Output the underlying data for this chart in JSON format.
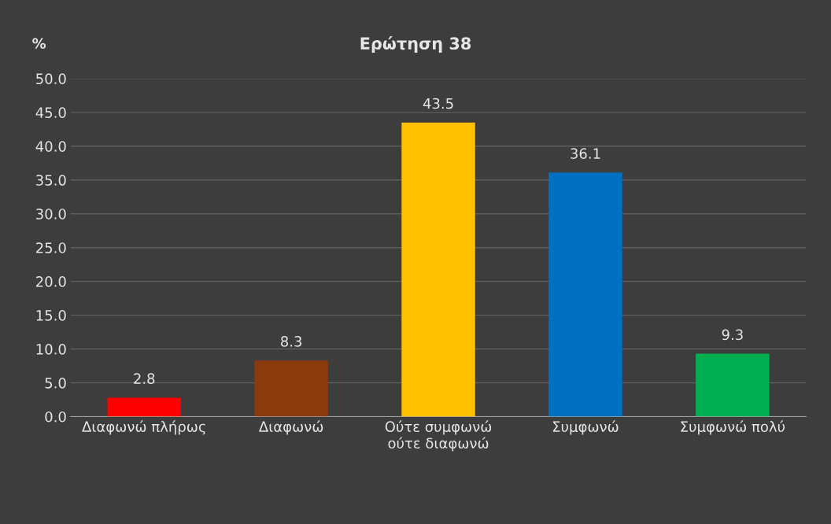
{
  "chart_data": {
    "type": "bar",
    "title": "Ερώτηση 38",
    "ylabel": "%",
    "categories": [
      "Διαφωνώ πλήρως",
      "Διαφωνώ",
      "Ούτε συμφωνώ\nούτε διαφωνώ",
      "Συμφωνώ",
      "Συμφωνώ πολύ"
    ],
    "values": [
      2.8,
      8.3,
      43.5,
      36.1,
      9.3
    ],
    "colors": [
      "#ff0000",
      "#8b3a0e",
      "#ffc000",
      "#0070c0",
      "#00b050"
    ],
    "ylim": [
      0,
      50
    ],
    "yticks": [
      {
        "value": 0,
        "label": "0.0"
      },
      {
        "value": 5,
        "label": "5.0"
      },
      {
        "value": 10,
        "label": "10.0"
      },
      {
        "value": 15,
        "label": "15.0"
      },
      {
        "value": 20,
        "label": "20.0"
      },
      {
        "value": 25,
        "label": "25.0"
      },
      {
        "value": 30,
        "label": "30.0"
      },
      {
        "value": 35,
        "label": "35.0"
      },
      {
        "value": 40,
        "label": "40.0"
      },
      {
        "value": 45,
        "label": "45.0"
      },
      {
        "value": 50,
        "label": "50.0"
      }
    ],
    "grid": "y",
    "data_labels": true
  }
}
